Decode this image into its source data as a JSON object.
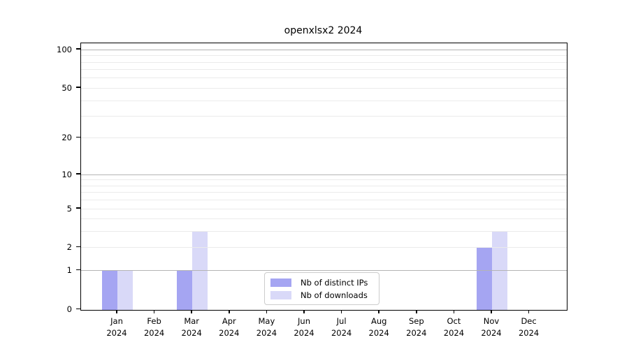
{
  "chart_data": {
    "type": "bar",
    "title": "openxlsx2 2024",
    "xlabel": "",
    "ylabel": "",
    "categories": [
      "Jan",
      "Feb",
      "Mar",
      "Apr",
      "May",
      "Jun",
      "Jul",
      "Aug",
      "Sep",
      "Oct",
      "Nov",
      "Dec"
    ],
    "category_year_line": "2024",
    "series": [
      {
        "name": "Nb of distinct IPs",
        "color": "#a5a5f2",
        "values": [
          1,
          0,
          1,
          0,
          0,
          0,
          0,
          0,
          0,
          0,
          2,
          0
        ]
      },
      {
        "name": "Nb of downloads",
        "color": "#d9d9f8",
        "values": [
          1,
          0,
          3,
          0,
          0,
          0,
          0,
          0,
          0,
          0,
          3,
          0
        ]
      }
    ],
    "y_scale": "log1p",
    "ylim": [
      0,
      113
    ],
    "y_ticks": [
      0,
      1,
      2,
      5,
      10,
      20,
      50,
      100
    ],
    "grid_major_values": [
      1,
      10,
      100
    ],
    "grid_minor_values": [
      2,
      3,
      4,
      5,
      6,
      7,
      8,
      9,
      20,
      30,
      40,
      50,
      60,
      70,
      80,
      90
    ],
    "grid_major_color": "#b4b4b4",
    "grid_minor_color": "#ebebeb",
    "legend_position": "bottom-center",
    "grid": "on"
  }
}
